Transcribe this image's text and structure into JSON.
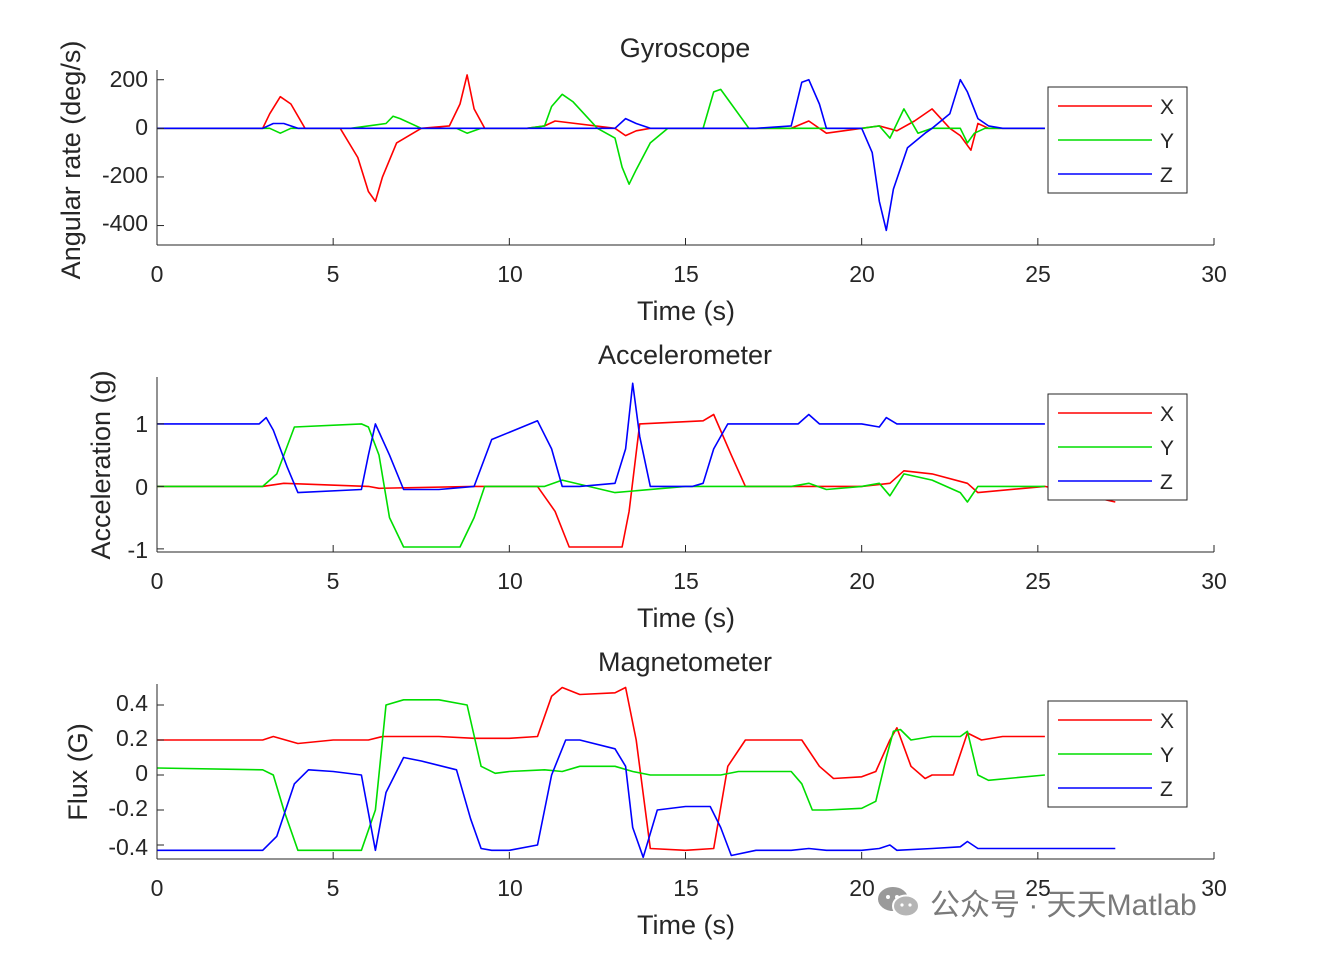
{
  "chart_data": [
    {
      "type": "line",
      "title": "Gyroscope",
      "xlabel": "Time (s)",
      "ylabel": "Angular rate (deg/s)",
      "xlim": [
        0,
        30
      ],
      "ylim": [
        -480,
        240
      ],
      "xticks": [
        0,
        5,
        10,
        15,
        20,
        25,
        30
      ],
      "xtick_labels": [
        "0",
        "5",
        "10",
        "15",
        "20",
        "25",
        "30"
      ],
      "yticks": [
        200,
        0,
        -200,
        -400
      ],
      "ytick_labels": [
        "200",
        "0",
        "-200",
        "-400"
      ],
      "legend": [
        "X",
        "Y",
        "Z"
      ],
      "legend_location": "northeast",
      "series": [
        {
          "name": "X",
          "color": "#ff0000",
          "x": [
            0,
            3,
            3.2,
            3.5,
            3.8,
            4.2,
            5.2,
            5.7,
            6.0,
            6.2,
            6.4,
            6.8,
            7.5,
            8.3,
            8.6,
            8.8,
            9.0,
            9.3,
            10,
            10.5,
            11.0,
            11.3,
            13,
            13.3,
            13.6,
            14,
            15,
            16,
            18,
            18.5,
            19,
            20,
            20.5,
            21,
            21.5,
            22,
            22.5,
            22.8,
            23.1,
            23.3,
            23.6,
            25.2
          ],
          "y": [
            0,
            0,
            60,
            130,
            100,
            0,
            0,
            -120,
            -260,
            -300,
            -200,
            -60,
            0,
            10,
            100,
            220,
            80,
            0,
            0,
            0,
            10,
            30,
            0,
            -30,
            -10,
            0,
            0,
            0,
            0,
            30,
            -20,
            0,
            10,
            -10,
            30,
            80,
            0,
            -30,
            -90,
            20,
            0,
            0
          ]
        },
        {
          "name": "Y",
          "color": "#00dd00",
          "x": [
            0,
            3.2,
            3.5,
            3.8,
            4.5,
            5.5,
            6.5,
            6.7,
            6.9,
            7.5,
            8.5,
            8.8,
            9.2,
            10,
            10.5,
            11,
            11.2,
            11.5,
            11.8,
            12.5,
            13,
            13.2,
            13.4,
            13.6,
            14,
            14.5,
            15,
            15.5,
            15.8,
            16,
            16.3,
            16.8,
            18,
            19,
            20,
            20.5,
            20.8,
            21.2,
            21.6,
            22,
            22.8,
            23.0,
            23.2,
            23.5,
            25.2
          ],
          "y": [
            0,
            0,
            -20,
            0,
            0,
            0,
            20,
            50,
            40,
            0,
            0,
            -20,
            0,
            0,
            0,
            10,
            90,
            140,
            110,
            0,
            -40,
            -160,
            -230,
            -170,
            -60,
            0,
            0,
            0,
            150,
            160,
            100,
            0,
            0,
            0,
            0,
            10,
            -40,
            80,
            -20,
            0,
            0,
            -60,
            -20,
            0,
            0
          ]
        },
        {
          "name": "Z",
          "color": "#0000ff",
          "x": [
            0,
            3,
            3.3,
            3.6,
            4,
            5,
            6,
            7,
            8,
            9,
            10,
            11,
            12,
            13,
            13.3,
            13.6,
            14,
            15,
            17,
            18,
            18.3,
            18.5,
            18.8,
            19,
            20,
            20.3,
            20.5,
            20.7,
            20.9,
            21.3,
            21.8,
            22,
            22.5,
            22.8,
            23,
            23.3,
            23.6,
            24,
            25.2
          ],
          "y": [
            0,
            0,
            20,
            20,
            0,
            0,
            0,
            0,
            0,
            0,
            0,
            0,
            0,
            0,
            40,
            20,
            0,
            0,
            0,
            10,
            190,
            200,
            100,
            0,
            0,
            -100,
            -300,
            -420,
            -250,
            -80,
            -20,
            0,
            60,
            200,
            150,
            40,
            10,
            0,
            0
          ]
        }
      ]
    },
    {
      "type": "line",
      "title": "Accelerometer",
      "xlabel": "Time (s)",
      "ylabel": "Acceleration (g)",
      "xlim": [
        0,
        30
      ],
      "ylim": [
        -1.05,
        1.75
      ],
      "xticks": [
        0,
        5,
        10,
        15,
        20,
        25,
        30
      ],
      "xtick_labels": [
        "0",
        "5",
        "10",
        "15",
        "20",
        "25",
        "30"
      ],
      "yticks": [
        1,
        0,
        -1
      ],
      "ytick_labels": [
        "1",
        "0",
        "-1"
      ],
      "legend": [
        "X",
        "Y",
        "Z"
      ],
      "legend_location": "northeast",
      "series": [
        {
          "name": "X",
          "color": "#ff0000",
          "x": [
            0,
            3,
            3.6,
            6.0,
            6.3,
            9.0,
            10.8,
            11.3,
            11.7,
            13.2,
            13.4,
            13.7,
            15.5,
            15.8,
            16.3,
            16.7,
            18,
            19,
            20,
            20.8,
            21.2,
            22,
            23,
            23.3,
            25.2,
            27.2
          ],
          "y": [
            0,
            0,
            0.05,
            0,
            -0.03,
            0,
            0,
            -0.4,
            -0.97,
            -0.97,
            -0.4,
            1.0,
            1.05,
            1.15,
            0.5,
            0,
            0,
            0,
            0,
            0.05,
            0.25,
            0.2,
            0.05,
            -0.1,
            0,
            -0.25
          ]
        },
        {
          "name": "Y",
          "color": "#00dd00",
          "x": [
            0,
            3,
            3.4,
            3.9,
            5.8,
            6.0,
            6.3,
            6.6,
            7.0,
            8.6,
            9.0,
            9.3,
            10,
            11,
            11.5,
            13,
            15,
            17,
            18,
            18.5,
            19,
            20,
            20.5,
            20.8,
            21.2,
            22,
            22.8,
            23.0,
            23.3,
            25.2
          ],
          "y": [
            0,
            0,
            0.2,
            0.95,
            1.0,
            0.95,
            0.5,
            -0.5,
            -0.97,
            -0.97,
            -0.5,
            0,
            0,
            0,
            0.1,
            -0.1,
            0,
            0,
            0,
            0.05,
            -0.05,
            0,
            0.05,
            -0.15,
            0.2,
            0.1,
            -0.1,
            -0.25,
            0,
            0
          ]
        },
        {
          "name": "Z",
          "color": "#0000ff",
          "x": [
            0,
            2.9,
            3.1,
            3.3,
            3.7,
            4.0,
            5.8,
            6.0,
            6.2,
            6.6,
            7.0,
            8,
            9,
            9.5,
            10.8,
            11.2,
            11.5,
            12,
            13,
            13.3,
            13.5,
            13.7,
            14.0,
            15.2,
            15.5,
            15.8,
            16.2,
            17,
            18.2,
            18.5,
            18.8,
            20,
            20.5,
            20.7,
            21,
            25.2
          ],
          "y": [
            1.0,
            1.0,
            1.1,
            0.9,
            0.3,
            -0.1,
            -0.05,
            0.5,
            1.0,
            0.5,
            -0.05,
            -0.05,
            0,
            0.75,
            1.05,
            0.6,
            0,
            0,
            0.05,
            0.6,
            1.65,
            0.8,
            0,
            0,
            0.05,
            0.6,
            1.0,
            1.0,
            1.0,
            1.15,
            1.0,
            1.0,
            0.95,
            1.1,
            1.0,
            1.0
          ]
        }
      ]
    },
    {
      "type": "line",
      "title": "Magnetometer",
      "xlabel": "Time (s)",
      "ylabel": "Flux (G)",
      "xlim": [
        0,
        30
      ],
      "ylim": [
        -0.48,
        0.52
      ],
      "xticks": [
        0,
        5,
        10,
        15,
        20,
        25,
        30
      ],
      "xtick_labels": [
        "0",
        "5",
        "10",
        "15",
        "20",
        "25",
        "30"
      ],
      "yticks": [
        0.4,
        0.2,
        0,
        -0.2,
        -0.4
      ],
      "ytick_labels": [
        "0.4",
        "0.2",
        "0",
        "-0.2",
        "-0.4"
      ],
      "legend": [
        "X",
        "Y",
        "Z"
      ],
      "legend_location": "northeast",
      "series": [
        {
          "name": "X",
          "color": "#ff0000",
          "x": [
            0,
            3,
            3.3,
            4,
            5,
            6,
            6.4,
            7,
            8,
            9,
            10,
            10.8,
            11.2,
            11.5,
            12,
            13,
            13.3,
            13.6,
            14,
            15,
            15.8,
            16.2,
            16.7,
            17,
            18,
            18.3,
            18.8,
            19.2,
            20,
            20.4,
            20.8,
            21.0,
            21.4,
            21.8,
            22,
            22.6,
            23.0,
            23.4,
            24,
            25.2
          ],
          "y": [
            0.2,
            0.2,
            0.22,
            0.18,
            0.2,
            0.2,
            0.22,
            0.22,
            0.22,
            0.21,
            0.21,
            0.22,
            0.45,
            0.5,
            0.46,
            0.47,
            0.5,
            0.2,
            -0.42,
            -0.43,
            -0.42,
            0.05,
            0.2,
            0.2,
            0.2,
            0.2,
            0.05,
            -0.02,
            -0.01,
            0.02,
            0.2,
            0.27,
            0.05,
            -0.02,
            0,
            0,
            0.24,
            0.2,
            0.22,
            0.22
          ]
        },
        {
          "name": "Y",
          "color": "#00dd00",
          "x": [
            0,
            3,
            3.3,
            3.6,
            4,
            5,
            5.8,
            6.2,
            6.5,
            7,
            8,
            8.8,
            9.2,
            9.6,
            10,
            11,
            11.5,
            12,
            13,
            13.5,
            14,
            15,
            16,
            16.5,
            18,
            18.3,
            18.6,
            19,
            20,
            20.4,
            20.7,
            20.9,
            21.1,
            21.4,
            22,
            22.8,
            23.0,
            23.3,
            23.6,
            25.2
          ],
          "y": [
            0.04,
            0.03,
            0,
            -0.2,
            -0.43,
            -0.43,
            -0.43,
            -0.2,
            0.4,
            0.43,
            0.43,
            0.4,
            0.05,
            0.01,
            0.02,
            0.03,
            0.02,
            0.05,
            0.05,
            0.02,
            0,
            0,
            0,
            0.02,
            0.02,
            -0.05,
            -0.2,
            -0.2,
            -0.19,
            -0.15,
            0.1,
            0.25,
            0.26,
            0.2,
            0.22,
            0.22,
            0.25,
            0,
            -0.03,
            0
          ]
        },
        {
          "name": "Z",
          "color": "#0000ff",
          "x": [
            0,
            3,
            3.4,
            3.9,
            4.3,
            5,
            5.8,
            6.2,
            6.5,
            7,
            7.5,
            8.5,
            8.9,
            9.2,
            9.5,
            10,
            10.8,
            11.2,
            11.6,
            12,
            13,
            13.3,
            13.5,
            13.8,
            14.2,
            15,
            15.7,
            16,
            16.3,
            17,
            18,
            18.5,
            19,
            20,
            20.5,
            20.8,
            21,
            22,
            22.8,
            23,
            23.3,
            24,
            27.2
          ],
          "y": [
            -0.43,
            -0.43,
            -0.35,
            -0.05,
            0.03,
            0.02,
            0.0,
            -0.43,
            -0.1,
            0.1,
            0.08,
            0.03,
            -0.25,
            -0.42,
            -0.43,
            -0.43,
            -0.4,
            0.0,
            0.2,
            0.2,
            0.15,
            0.05,
            -0.3,
            -0.47,
            -0.2,
            -0.18,
            -0.18,
            -0.3,
            -0.46,
            -0.43,
            -0.43,
            -0.42,
            -0.43,
            -0.43,
            -0.42,
            -0.4,
            -0.43,
            -0.42,
            -0.41,
            -0.38,
            -0.42,
            -0.42,
            -0.42
          ]
        }
      ]
    }
  ],
  "watermark": {
    "text": "公众号 · 天天Matlab"
  }
}
